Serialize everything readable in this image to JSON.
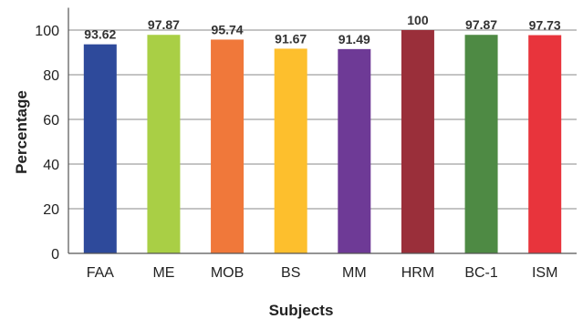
{
  "chart_data": {
    "type": "bar",
    "categories": [
      "FAA",
      "ME",
      "MOB",
      "BS",
      "MM",
      "HRM",
      "BC-1",
      "ISM"
    ],
    "values": [
      93.62,
      97.87,
      95.74,
      91.67,
      91.49,
      100,
      97.87,
      97.73
    ],
    "data_labels": [
      "93.62",
      "97.87",
      "95.74",
      "91.67",
      "91.49",
      "100",
      "97.87",
      "97.73"
    ],
    "colors": [
      "#2E4A9B",
      "#A9CF45",
      "#F0783A",
      "#FDBF2D",
      "#6E3A96",
      "#9A2F3A",
      "#4E8A44",
      "#E8343C"
    ],
    "xlabel": "Subjects",
    "ylabel": "Percentage",
    "ylim": [
      0,
      110
    ],
    "yticks": [
      0,
      20,
      40,
      60,
      80,
      100
    ],
    "grid": true
  }
}
